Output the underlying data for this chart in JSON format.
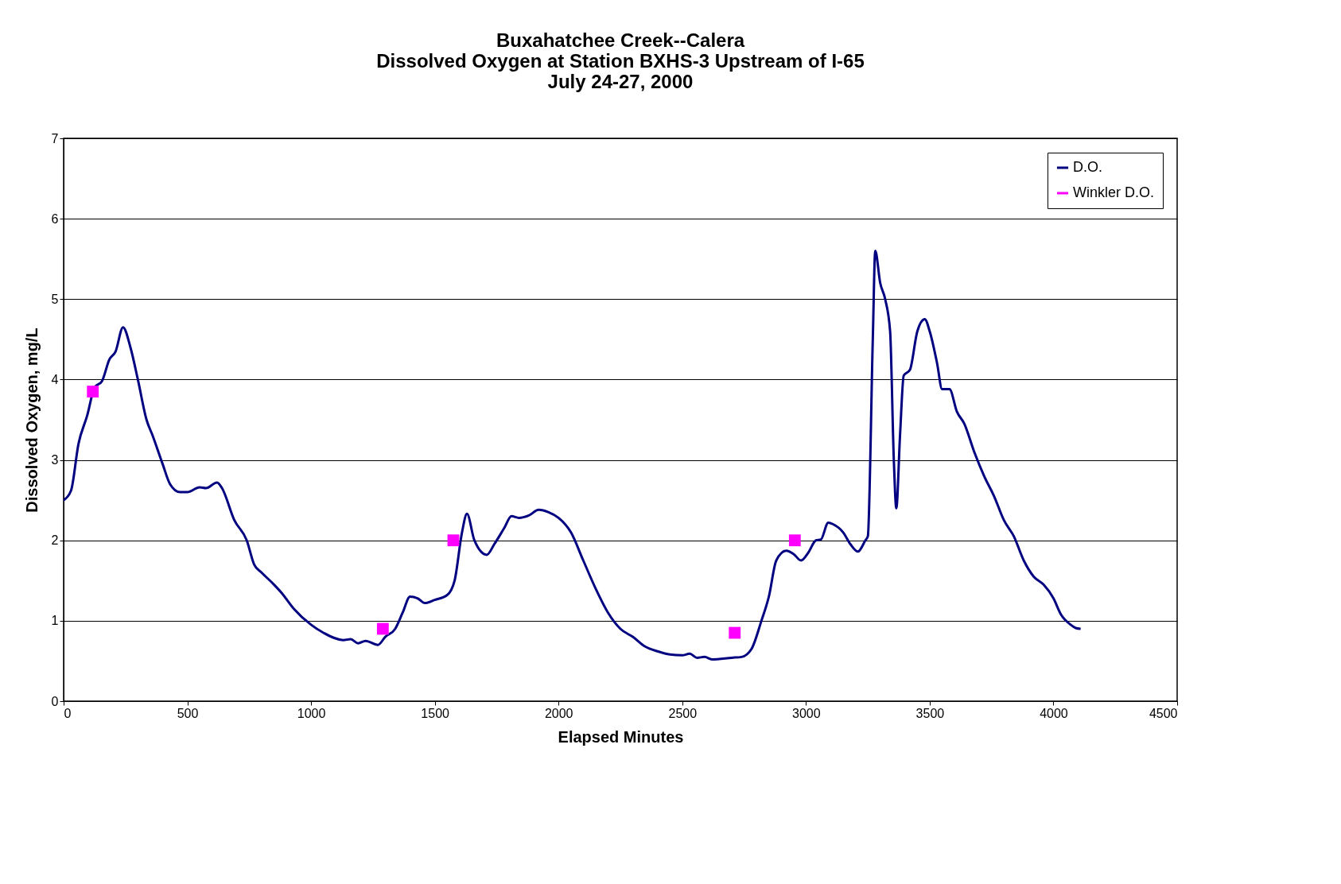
{
  "chart_data": {
    "type": "line",
    "title": [
      "Buxahatchee Creek--Calera",
      "Dissolved Oxygen at Station BXHS-3 Upstream of I-65",
      "July 24-27, 2000"
    ],
    "xlabel": "Elapsed Minutes",
    "ylabel": "Dissolved Oxygen, mg/L",
    "xlim": [
      0,
      4500
    ],
    "xticks": [
      0,
      500,
      1000,
      1500,
      2000,
      2500,
      3000,
      3500,
      4000,
      4500
    ],
    "ylim": [
      0,
      7
    ],
    "yticks": [
      0,
      1,
      2,
      3,
      4,
      5,
      6,
      7
    ],
    "grid": "y",
    "legend": "top right",
    "series": [
      {
        "name": "D.O.",
        "color": "#000080",
        "marker": "none",
        "line_style": "solid",
        "x": [
          0,
          30,
          60,
          95,
          125,
          155,
          185,
          210,
          240,
          270,
          300,
          335,
          360,
          400,
          430,
          470,
          500,
          550,
          575,
          620,
          640,
          690,
          740,
          770,
          800,
          850,
          880,
          930,
          1000,
          1050,
          1130,
          1160,
          1190,
          1220,
          1270,
          1300,
          1340,
          1370,
          1400,
          1430,
          1460,
          1500,
          1550,
          1580,
          1610,
          1630,
          1660,
          1710,
          1740,
          1780,
          1810,
          1840,
          1880,
          1920,
          1960,
          2000,
          2050,
          2100,
          2150,
          2200,
          2250,
          2300,
          2350,
          2400,
          2450,
          2500,
          2530,
          2560,
          2590,
          2620,
          2700,
          2740,
          2780,
          2820,
          2850,
          2880,
          2920,
          2950,
          2980,
          3010,
          3040,
          3060,
          3090,
          3110,
          3150,
          3180,
          3210,
          3240,
          3250,
          3270,
          3280,
          3300,
          3320,
          3340,
          3355,
          3365,
          3380,
          3395,
          3420,
          3450,
          3480,
          3500,
          3530,
          3550,
          3580,
          3610,
          3640,
          3680,
          3720,
          3760,
          3800,
          3840,
          3880,
          3920,
          3960,
          4000,
          4030,
          4070,
          4090,
          4110
        ],
        "values": [
          2.5,
          2.62,
          3.2,
          3.55,
          3.9,
          3.98,
          4.25,
          4.35,
          4.65,
          4.4,
          4.0,
          3.5,
          3.3,
          2.95,
          2.7,
          2.6,
          2.6,
          2.66,
          2.65,
          2.72,
          2.65,
          2.25,
          2.0,
          1.7,
          1.6,
          1.45,
          1.35,
          1.15,
          0.95,
          0.85,
          0.76,
          0.77,
          0.72,
          0.75,
          0.7,
          0.8,
          0.9,
          1.1,
          1.3,
          1.28,
          1.22,
          1.26,
          1.32,
          1.5,
          2.1,
          2.33,
          2.0,
          1.82,
          1.95,
          2.15,
          2.3,
          2.28,
          2.31,
          2.38,
          2.35,
          2.28,
          2.1,
          1.75,
          1.4,
          1.1,
          0.9,
          0.8,
          0.68,
          0.62,
          0.58,
          0.57,
          0.59,
          0.54,
          0.55,
          0.52,
          0.54,
          0.55,
          0.65,
          1.0,
          1.3,
          1.75,
          1.87,
          1.83,
          1.75,
          1.85,
          2.0,
          2.01,
          2.22,
          2.2,
          2.1,
          1.95,
          1.86,
          2.0,
          2.05,
          4.5,
          5.6,
          5.2,
          5.0,
          4.6,
          3.0,
          2.4,
          3.3,
          4.05,
          4.12,
          4.6,
          4.75,
          4.6,
          4.2,
          3.88,
          3.88,
          3.6,
          3.45,
          3.1,
          2.8,
          2.55,
          2.25,
          2.05,
          1.75,
          1.55,
          1.45,
          1.28,
          1.08,
          0.95,
          0.91,
          0.9
        ]
      },
      {
        "name": "Winkler D.O.",
        "type": "scatter",
        "color": "#ff00ff",
        "marker": "square",
        "x": [
          118,
          1290,
          1575,
          2712,
          2955
        ],
        "values": [
          3.85,
          0.9,
          2.0,
          0.85,
          2.0
        ]
      }
    ]
  }
}
